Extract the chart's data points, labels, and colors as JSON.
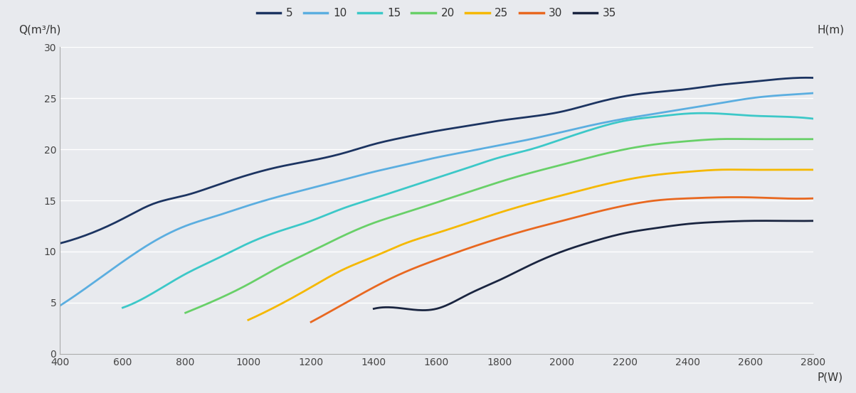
{
  "xlabel": "P(W)",
  "ylabel_left": "Q(m³/h)",
  "ylabel_right": "H(m)",
  "xlim": [
    400,
    2800
  ],
  "ylim": [
    0,
    30
  ],
  "xticks": [
    400,
    600,
    800,
    1000,
    1200,
    1400,
    1600,
    1800,
    2000,
    2200,
    2400,
    2600,
    2800
  ],
  "yticks": [
    0,
    5,
    10,
    15,
    20,
    25,
    30
  ],
  "background_color": "#e8eaee",
  "grid_color": "#ffffff",
  "series": [
    {
      "label": "5",
      "color": "#1c3461",
      "x": [
        400,
        500,
        600,
        700,
        800,
        900,
        1000,
        1100,
        1200,
        1300,
        1400,
        1500,
        1600,
        1700,
        1800,
        1900,
        2000,
        2100,
        2200,
        2300,
        2400,
        2500,
        2600,
        2700,
        2800
      ],
      "y": [
        10.8,
        11.8,
        13.2,
        14.7,
        15.5,
        16.5,
        17.5,
        18.3,
        18.9,
        19.6,
        20.5,
        21.2,
        21.8,
        22.3,
        22.8,
        23.2,
        23.7,
        24.5,
        25.2,
        25.6,
        25.9,
        26.3,
        26.6,
        26.9,
        27.0
      ]
    },
    {
      "label": "10",
      "color": "#5baee0",
      "x": [
        400,
        500,
        600,
        700,
        800,
        900,
        1000,
        1100,
        1200,
        1300,
        1400,
        1500,
        1600,
        1700,
        1800,
        1900,
        2000,
        2100,
        2200,
        2300,
        2400,
        2500,
        2600,
        2700,
        2800
      ],
      "y": [
        4.7,
        6.8,
        9.0,
        11.0,
        12.5,
        13.5,
        14.5,
        15.4,
        16.2,
        17.0,
        17.8,
        18.5,
        19.2,
        19.8,
        20.4,
        21.0,
        21.7,
        22.4,
        23.0,
        23.5,
        24.0,
        24.5,
        25.0,
        25.3,
        25.5
      ]
    },
    {
      "label": "15",
      "color": "#3cc8c8",
      "x": [
        600,
        700,
        800,
        900,
        1000,
        1100,
        1200,
        1300,
        1400,
        1500,
        1600,
        1700,
        1800,
        1900,
        2000,
        2100,
        2200,
        2300,
        2400,
        2500,
        2600,
        2700,
        2800
      ],
      "y": [
        4.5,
        6.0,
        7.8,
        9.3,
        10.8,
        12.0,
        13.0,
        14.2,
        15.2,
        16.2,
        17.2,
        18.2,
        19.2,
        20.0,
        21.0,
        22.0,
        22.8,
        23.2,
        23.5,
        23.5,
        23.3,
        23.2,
        23.0
      ]
    },
    {
      "label": "20",
      "color": "#68d068",
      "x": [
        800,
        900,
        1000,
        1100,
        1200,
        1300,
        1400,
        1500,
        1600,
        1700,
        1800,
        1900,
        2000,
        2100,
        2200,
        2300,
        2400,
        2500,
        2600,
        2700,
        2800
      ],
      "y": [
        4.0,
        5.3,
        6.8,
        8.5,
        10.0,
        11.5,
        12.8,
        13.8,
        14.8,
        15.8,
        16.8,
        17.7,
        18.5,
        19.3,
        20.0,
        20.5,
        20.8,
        21.0,
        21.0,
        21.0,
        21.0
      ]
    },
    {
      "label": "25",
      "color": "#f5b800",
      "x": [
        1000,
        1100,
        1200,
        1300,
        1400,
        1500,
        1600,
        1700,
        1800,
        1900,
        2000,
        2100,
        2200,
        2300,
        2400,
        2500,
        2600,
        2700,
        2800
      ],
      "y": [
        3.3,
        4.8,
        6.5,
        8.2,
        9.5,
        10.8,
        11.8,
        12.8,
        13.8,
        14.7,
        15.5,
        16.3,
        17.0,
        17.5,
        17.8,
        18.0,
        18.0,
        18.0,
        18.0
      ]
    },
    {
      "label": "30",
      "color": "#e86820",
      "x": [
        1200,
        1300,
        1400,
        1500,
        1600,
        1700,
        1800,
        1900,
        2000,
        2100,
        2200,
        2300,
        2400,
        2500,
        2600,
        2700,
        2800
      ],
      "y": [
        3.1,
        4.8,
        6.5,
        8.0,
        9.2,
        10.3,
        11.3,
        12.2,
        13.0,
        13.8,
        14.5,
        15.0,
        15.2,
        15.3,
        15.3,
        15.2,
        15.2
      ]
    },
    {
      "label": "35",
      "color": "#1a2540",
      "x": [
        1400,
        1500,
        1600,
        1700,
        1800,
        1900,
        2000,
        2100,
        2200,
        2300,
        2400,
        2500,
        2600,
        2700,
        2800
      ],
      "y": [
        4.4,
        4.4,
        4.4,
        5.8,
        7.2,
        8.7,
        10.0,
        11.0,
        11.8,
        12.3,
        12.7,
        12.9,
        13.0,
        13.0,
        13.0
      ]
    }
  ],
  "legend_colors": [
    "#1c3461",
    "#5baee0",
    "#3cc8c8",
    "#68d068",
    "#f5b800",
    "#e86820",
    "#1a2540"
  ],
  "legend_labels": [
    "5",
    "10",
    "15",
    "20",
    "25",
    "30",
    "35"
  ]
}
